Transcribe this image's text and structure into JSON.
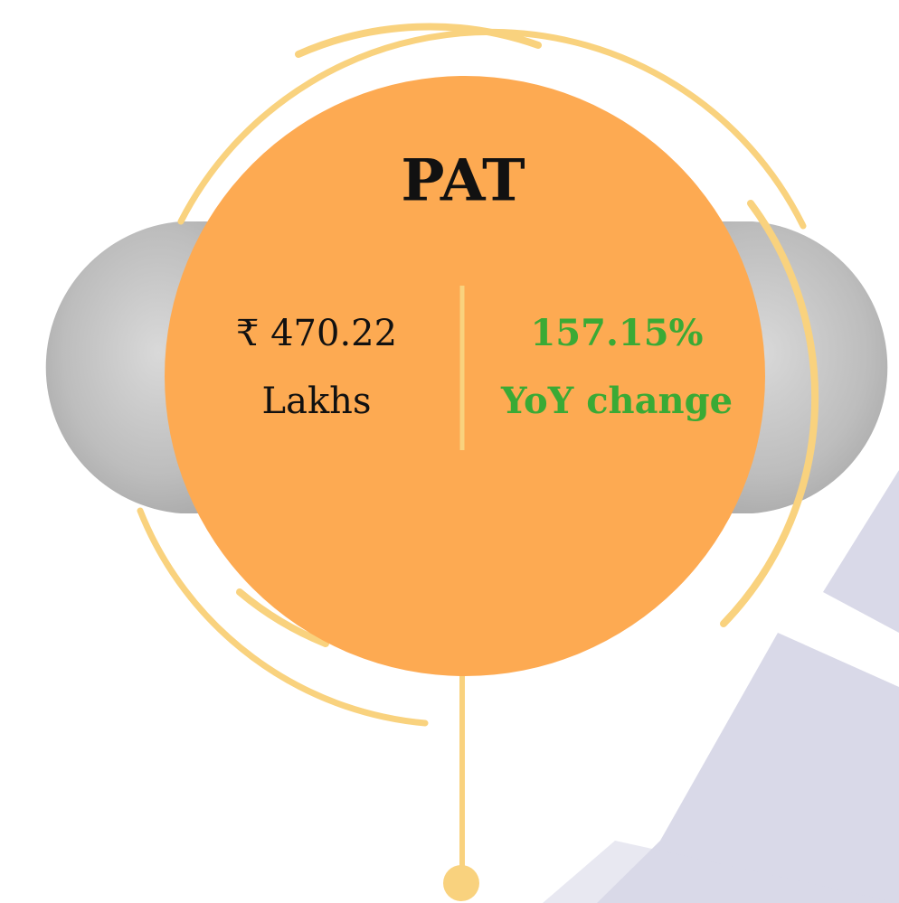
{
  "title": "PAT",
  "left": {
    "value": "₹ 470.22",
    "unit": "Lakhs"
  },
  "right": {
    "value": "157.15%",
    "label": "YoY change"
  }
}
